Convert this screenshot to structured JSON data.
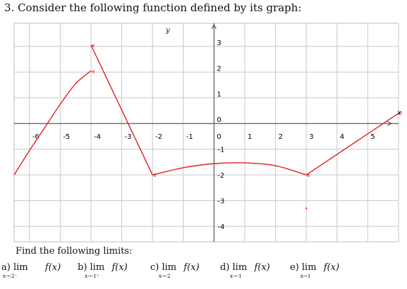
{
  "problem": {
    "title": "3. Consider the following function defined by its graph:",
    "find_text": "Find the following limits:"
  },
  "limits": [
    {
      "label": "a) lim",
      "func": "f(x)",
      "sub": "x→-2⁻"
    },
    {
      "label": "b) lim",
      "func": "f(x)",
      "sub": "x→-1⁺"
    },
    {
      "label": "c) lim",
      "func": "f(x)",
      "sub": "x→-2"
    },
    {
      "label": "d) lim",
      "func": "f(x)",
      "sub": "x→-1"
    },
    {
      "label": "e) lim",
      "func": "f(x)",
      "sub": "x→1"
    }
  ],
  "chart_data": {
    "type": "line",
    "xlabel": "x",
    "ylabel": "y",
    "xlim": [
      -6.5,
      6
    ],
    "ylim": [
      -4.6,
      3.9
    ],
    "grid": true,
    "x_ticks": [
      "-6",
      "-5",
      "-4",
      "-3",
      "-2",
      "-1",
      "0",
      "1",
      "2",
      "3",
      "4",
      "5"
    ],
    "x_tick_values": [
      -6,
      -5,
      -4,
      -3,
      -2,
      -1,
      0,
      1,
      2,
      3,
      4,
      5
    ],
    "y_ticks_positive": [
      "3",
      "2",
      "1",
      "0"
    ],
    "y_ticks_positive_values": [
      3,
      2,
      1,
      0
    ],
    "y_ticks_negative": [
      "-1",
      "-2",
      "-3",
      "-4"
    ],
    "y_ticks_negative_values": [
      -1,
      -2,
      -3,
      -4
    ],
    "series": [
      {
        "color": "#e02020",
        "segments": [
          {
            "kind": "curve",
            "points": [
              [
                -6.5,
                -2
              ],
              [
                -6,
                -1.05
              ],
              [
                -5.5,
                -0.15
              ],
              [
                -5,
                0.75
              ],
              [
                -4.5,
                1.55
              ],
              [
                -4,
                2.05
              ]
            ]
          },
          {
            "kind": "line",
            "points": [
              [
                -4,
                3.05
              ],
              [
                -2,
                -2
              ]
            ]
          },
          {
            "kind": "curve",
            "points": [
              [
                -2,
                -2
              ],
              [
                -1,
                -1.72
              ],
              [
                0,
                -1.56
              ],
              [
                1,
                -1.53
              ],
              [
                2,
                -1.64
              ],
              [
                3,
                -2
              ]
            ]
          },
          {
            "kind": "line",
            "points": [
              [
                3,
                -2
              ],
              [
                6,
                0.4
              ]
            ]
          }
        ],
        "point_labels": [
          {
            "x": -4,
            "y": 3.05,
            "text": "e"
          },
          {
            "x": -4,
            "y": 2.05,
            "text": "e"
          },
          {
            "x": -2,
            "y": -2,
            "text": "e"
          },
          {
            "x": 3,
            "y": -2,
            "text": "e"
          },
          {
            "x": 6,
            "y": 0.45,
            "text": "e"
          }
        ],
        "isolated_points": [
          {
            "x": 3,
            "y": -3.3
          }
        ]
      }
    ]
  }
}
